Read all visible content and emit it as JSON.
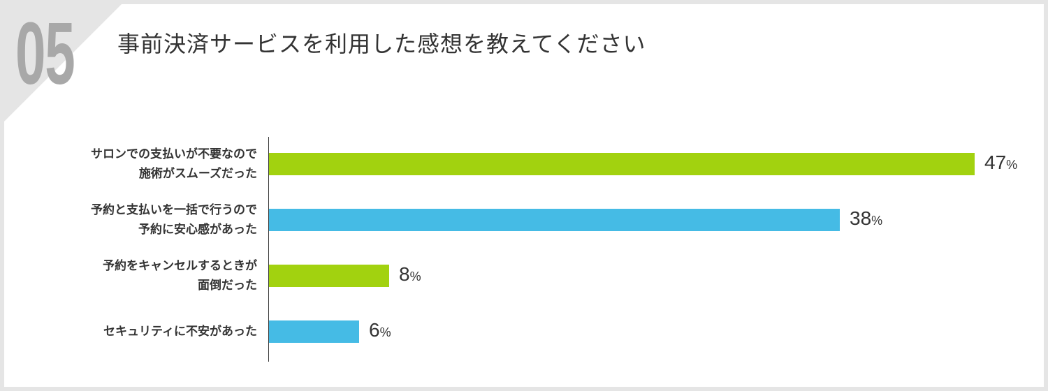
{
  "question": {
    "number": "05",
    "title": "事前決済サービスを利用した感想を教えてください"
  },
  "colors": {
    "green": "#a2d20f",
    "blue": "#45bbe5",
    "axis": "#333333",
    "text": "#333333"
  },
  "chart_data": {
    "type": "bar",
    "orientation": "horizontal",
    "categories": [
      [
        "サロンでの支払いが不要なので",
        "施術がスムーズだった"
      ],
      [
        "予約と支払いを一括で行うので",
        "予約に安心感があった"
      ],
      [
        "予約をキャンセルするときが",
        "面倒だった"
      ],
      [
        "セキュリティに不安があった"
      ]
    ],
    "values": [
      47,
      38,
      8,
      6
    ],
    "value_labels": [
      "47",
      "38",
      "8",
      "6"
    ],
    "unit": "%",
    "bar_colors": [
      "#a2d20f",
      "#45bbe5",
      "#a2d20f",
      "#45bbe5"
    ],
    "xlim": [
      0,
      47
    ],
    "title": "",
    "xlabel": "",
    "ylabel": "",
    "grid": false,
    "legend": false
  }
}
